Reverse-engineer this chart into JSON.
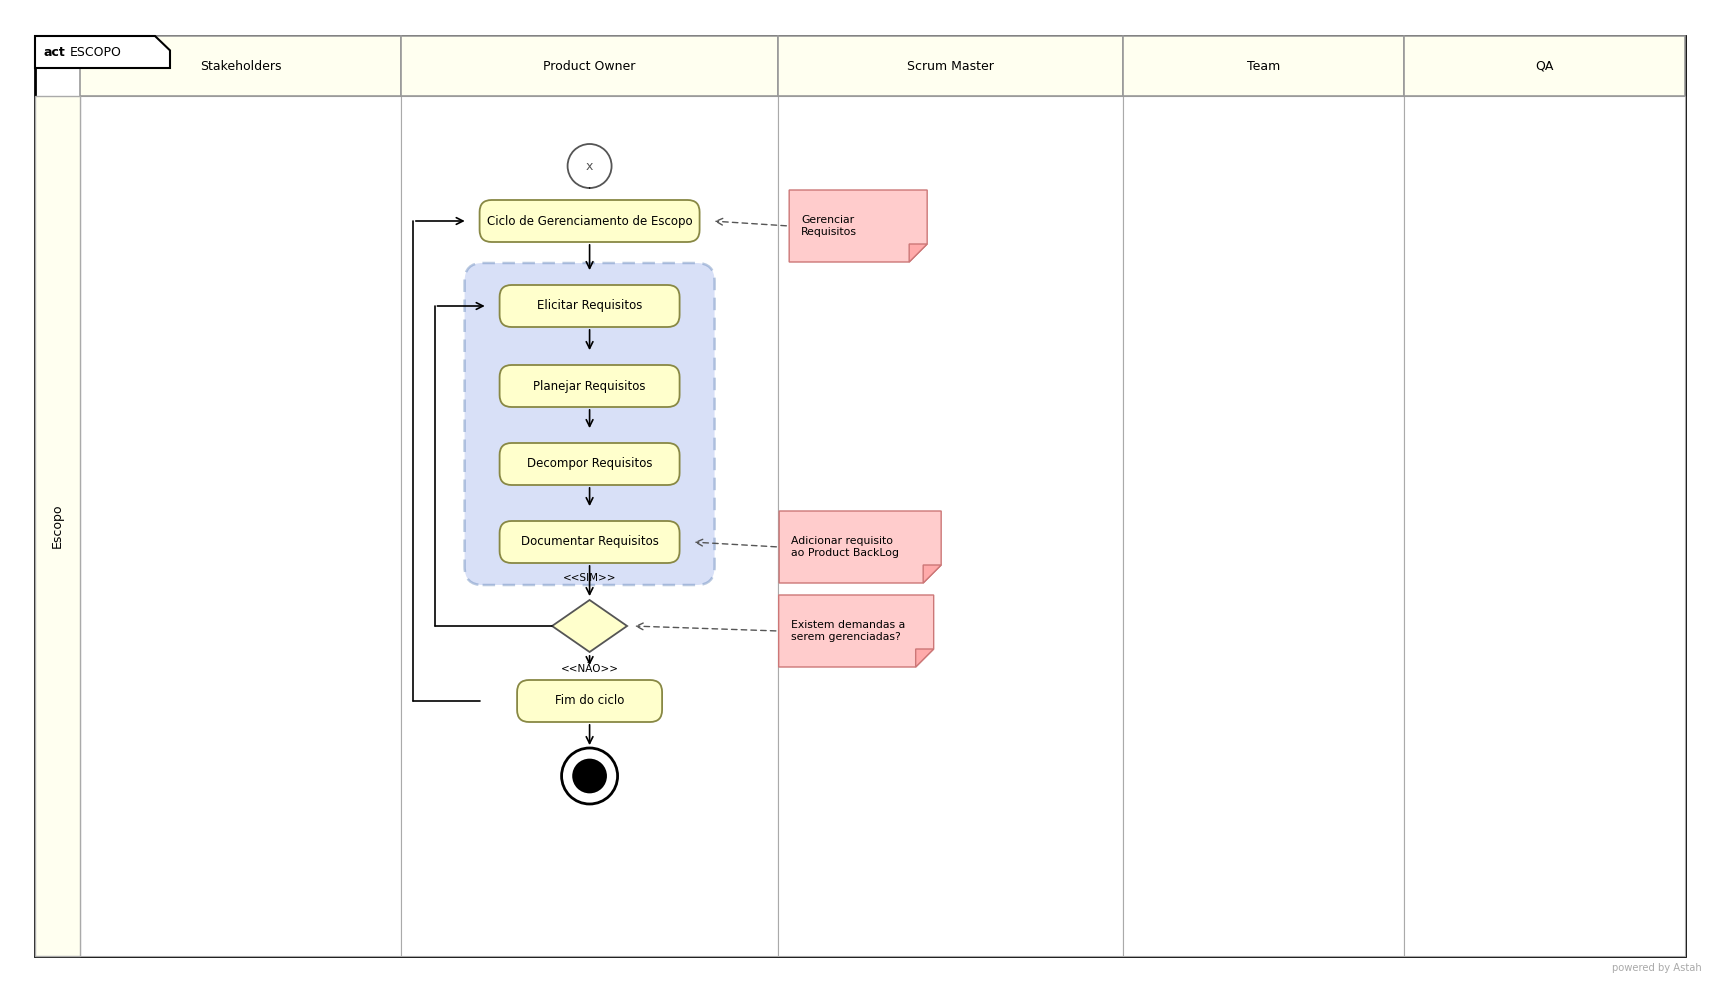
{
  "title_bold": "act",
  "title_normal": "ESCOPO",
  "swim_lanes": [
    "Stakeholders",
    "Product Owner",
    "Scrum Master",
    "Team",
    "QA"
  ],
  "lane_header_bg": "#fffff0",
  "lane_body_bg": "#ffffff",
  "escopo_strip_bg": "#fffff0",
  "activity_box_bg": "#ffffcc",
  "activity_box_border": "#888844",
  "cluster_bg": "#aabbee",
  "cluster_alpha": 0.45,
  "note_bg": "#ffcccc",
  "note_border": "#cc8888",
  "watermark": "powered by Astah"
}
